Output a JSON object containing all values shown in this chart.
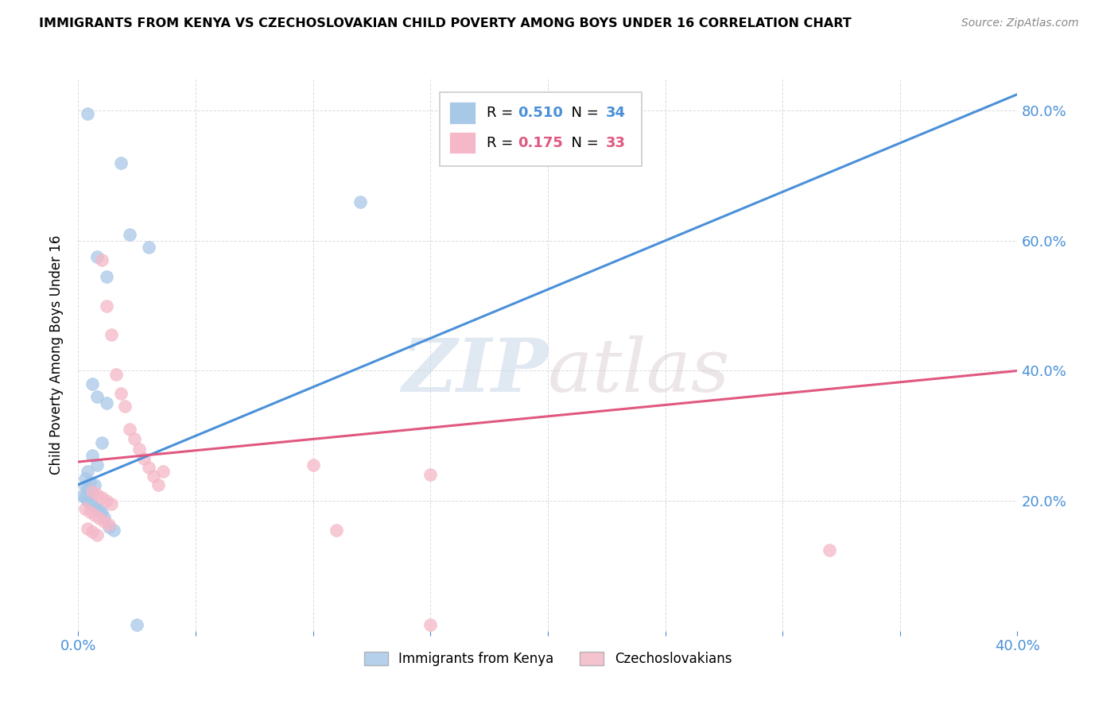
{
  "title": "IMMIGRANTS FROM KENYA VS CZECHOSLOVAKIAN CHILD POVERTY AMONG BOYS UNDER 16 CORRELATION CHART",
  "source": "Source: ZipAtlas.com",
  "ylabel": "Child Poverty Among Boys Under 16",
  "xlim": [
    0.0,
    0.4
  ],
  "ylim": [
    0.0,
    0.85
  ],
  "watermark": "ZIPatlas",
  "kenya_color": "#a8c8e8",
  "czech_color": "#f4b8c8",
  "kenya_trend_color": "#4a90d9",
  "czech_trend_color": "#e05880",
  "background_color": "#ffffff",
  "grid_color": "#d8d8d8",
  "kenya_points": [
    [
      0.004,
      0.795
    ],
    [
      0.018,
      0.72
    ],
    [
      0.022,
      0.61
    ],
    [
      0.03,
      0.59
    ],
    [
      0.008,
      0.575
    ],
    [
      0.012,
      0.545
    ],
    [
      0.006,
      0.38
    ],
    [
      0.008,
      0.36
    ],
    [
      0.012,
      0.35
    ],
    [
      0.01,
      0.29
    ],
    [
      0.006,
      0.27
    ],
    [
      0.008,
      0.255
    ],
    [
      0.004,
      0.245
    ],
    [
      0.003,
      0.235
    ],
    [
      0.005,
      0.228
    ],
    [
      0.007,
      0.225
    ],
    [
      0.003,
      0.222
    ],
    [
      0.004,
      0.218
    ],
    [
      0.005,
      0.215
    ],
    [
      0.006,
      0.212
    ],
    [
      0.002,
      0.208
    ],
    [
      0.003,
      0.205
    ],
    [
      0.004,
      0.2
    ],
    [
      0.005,
      0.197
    ],
    [
      0.006,
      0.193
    ],
    [
      0.007,
      0.19
    ],
    [
      0.008,
      0.188
    ],
    [
      0.009,
      0.185
    ],
    [
      0.01,
      0.182
    ],
    [
      0.011,
      0.175
    ],
    [
      0.013,
      0.16
    ],
    [
      0.12,
      0.66
    ],
    [
      0.025,
      0.01
    ],
    [
      0.015,
      0.155
    ]
  ],
  "czech_points": [
    [
      0.01,
      0.57
    ],
    [
      0.012,
      0.5
    ],
    [
      0.014,
      0.455
    ],
    [
      0.016,
      0.395
    ],
    [
      0.018,
      0.365
    ],
    [
      0.02,
      0.345
    ],
    [
      0.022,
      0.31
    ],
    [
      0.024,
      0.295
    ],
    [
      0.026,
      0.28
    ],
    [
      0.028,
      0.265
    ],
    [
      0.03,
      0.252
    ],
    [
      0.032,
      0.238
    ],
    [
      0.034,
      0.225
    ],
    [
      0.006,
      0.215
    ],
    [
      0.008,
      0.21
    ],
    [
      0.01,
      0.205
    ],
    [
      0.012,
      0.2
    ],
    [
      0.014,
      0.195
    ],
    [
      0.003,
      0.188
    ],
    [
      0.005,
      0.183
    ],
    [
      0.007,
      0.178
    ],
    [
      0.009,
      0.173
    ],
    [
      0.011,
      0.168
    ],
    [
      0.013,
      0.163
    ],
    [
      0.004,
      0.158
    ],
    [
      0.006,
      0.153
    ],
    [
      0.008,
      0.148
    ],
    [
      0.036,
      0.245
    ],
    [
      0.1,
      0.255
    ],
    [
      0.15,
      0.24
    ],
    [
      0.11,
      0.155
    ],
    [
      0.32,
      0.125
    ],
    [
      0.15,
      0.01
    ]
  ]
}
